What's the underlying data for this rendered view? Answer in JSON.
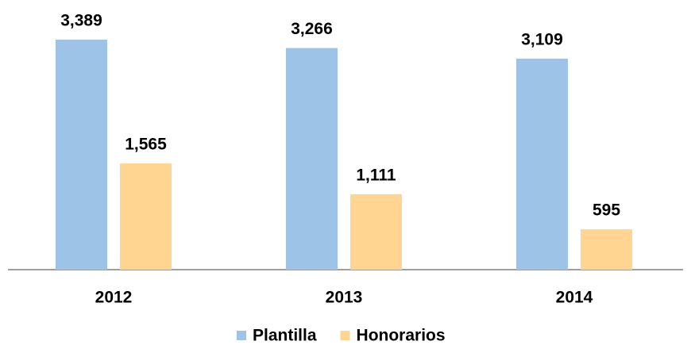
{
  "chart_data": {
    "type": "bar",
    "categories": [
      "2012",
      "2013",
      "2014"
    ],
    "series": [
      {
        "name": "Plantilla",
        "color": "#9dc3e6",
        "values": [
          3389,
          3266,
          3109
        ],
        "value_labels": [
          "3,389",
          "3,266",
          "3,109"
        ]
      },
      {
        "name": "Honorarios",
        "color": "#ffd591",
        "values": [
          1565,
          1111,
          595
        ],
        "value_labels": [
          "1,565",
          "1,111",
          "595"
        ]
      }
    ]
  }
}
